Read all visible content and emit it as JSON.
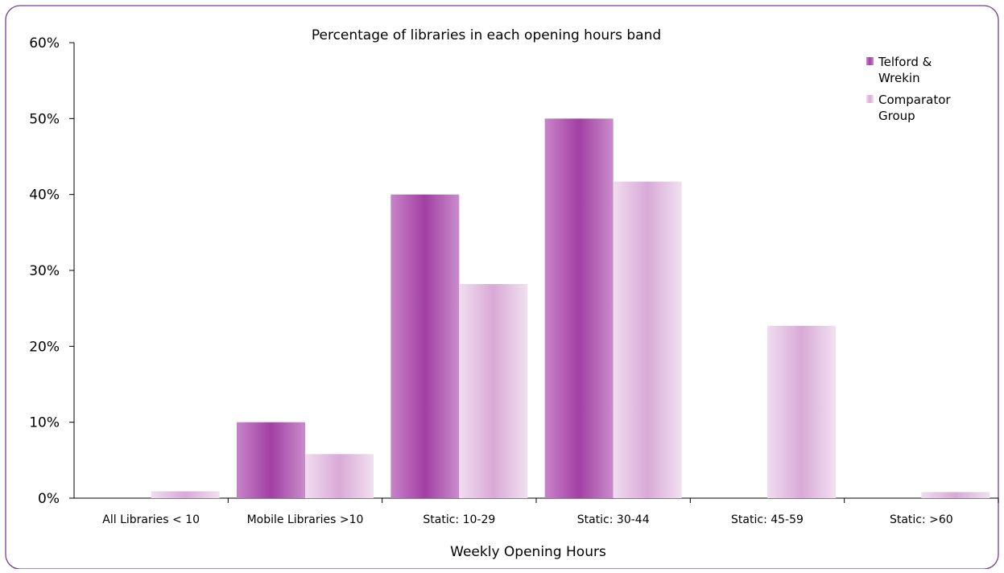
{
  "chart_data": {
    "type": "bar",
    "title": "Percentage of libraries in each opening hours band",
    "xlabel": "Weekly Opening Hours",
    "ylabel": "",
    "ylim": [
      0,
      60
    ],
    "yticks": [
      "0%",
      "10%",
      "20%",
      "30%",
      "40%",
      "50%",
      "60%"
    ],
    "grid": false,
    "legend_position": "top-right",
    "categories": [
      "All Libraries < 10",
      "Mobile Libraries >10",
      "Static: 10-29",
      "Static: 30-44",
      "Static: 45-59",
      "Static: >60"
    ],
    "series": [
      {
        "name": "Telford & Wrekin",
        "legend_lines": [
          "Telford &",
          "Wrekin"
        ],
        "color": "#a23fa4",
        "values": [
          0,
          10,
          40,
          50,
          0,
          0
        ]
      },
      {
        "name": "Comparator Group",
        "legend_lines": [
          "Comparator",
          "Group"
        ],
        "color": "#ddb2dd",
        "values": [
          0.9,
          5.8,
          28.2,
          41.7,
          22.7,
          0.8
        ]
      }
    ]
  }
}
